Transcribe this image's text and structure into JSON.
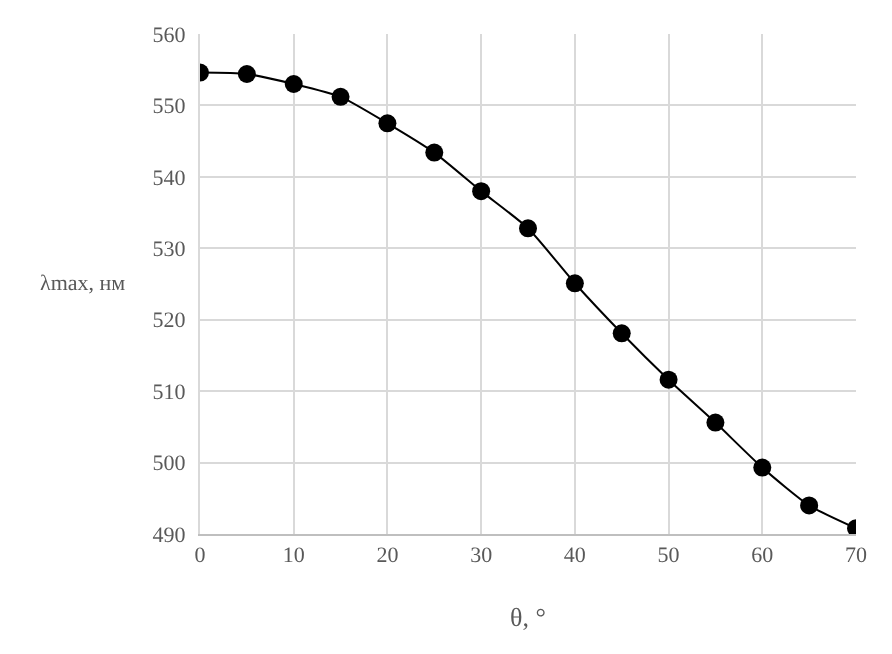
{
  "chart_data": {
    "type": "line",
    "xlabel": "θ, °",
    "ylabel": "λmax, нм",
    "x": [
      0,
      5,
      10,
      15,
      20,
      25,
      30,
      35,
      40,
      45,
      50,
      55,
      60,
      65,
      70
    ],
    "series": [
      {
        "color": "#000000",
        "values": [
          554.6,
          554.4,
          553.0,
          551.2,
          547.5,
          543.4,
          538.0,
          532.8,
          525.1,
          518.1,
          511.6,
          505.6,
          499.3,
          494.0,
          490.8
        ]
      }
    ],
    "xlim": [
      0,
      70
    ],
    "xticks": [
      0,
      10,
      20,
      30,
      40,
      50,
      60,
      70
    ],
    "ylim": [
      490,
      560
    ],
    "yticks": [
      490,
      500,
      510,
      520,
      530,
      540,
      550,
      560
    ],
    "grid": true,
    "marker": "circle",
    "line_style": "solid",
    "legend": false
  }
}
